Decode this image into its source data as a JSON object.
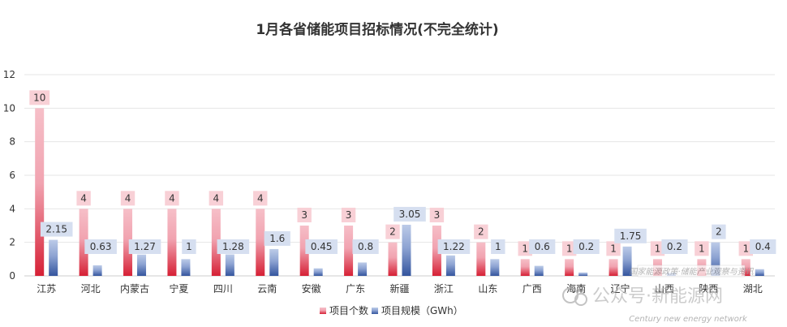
{
  "chart_data": {
    "type": "bar",
    "title": "1月各省储能项目招标情况(不完全统计)",
    "xlabel": "",
    "ylabel": "",
    "ylim": [
      0,
      12
    ],
    "yticks": [
      0,
      2,
      4,
      6,
      8,
      10,
      12
    ],
    "grid": true,
    "legend_position": "bottom",
    "categories": [
      "江苏",
      "河北",
      "内蒙古",
      "宁夏",
      "四川",
      "云南",
      "安徽",
      "广东",
      "新疆",
      "浙江",
      "山东",
      "广西",
      "海南",
      "辽宁",
      "山西",
      "陕西",
      "湖北"
    ],
    "series": [
      {
        "name": "项目个数",
        "color": "#d9283a",
        "label_bg": "#f8d0d6",
        "values": [
          10,
          4,
          4,
          4,
          4,
          4,
          3,
          3,
          2,
          3,
          2,
          1,
          1,
          1,
          1,
          1,
          1
        ]
      },
      {
        "name": "项目规模（GWh）",
        "color": "#3d5ea8",
        "label_bg": "#d6dff0",
        "values": [
          2.15,
          0.63,
          1.27,
          1,
          1.28,
          1.6,
          0.45,
          0.8,
          3.05,
          1.22,
          1,
          0.6,
          0.2,
          1.75,
          0.2,
          2,
          0.4
        ]
      }
    ]
  },
  "watermark": {
    "main": "公众号·新能源网",
    "sub": "Century new energy network",
    "small": "国家能源政策·储能产业观察与资讯"
  }
}
